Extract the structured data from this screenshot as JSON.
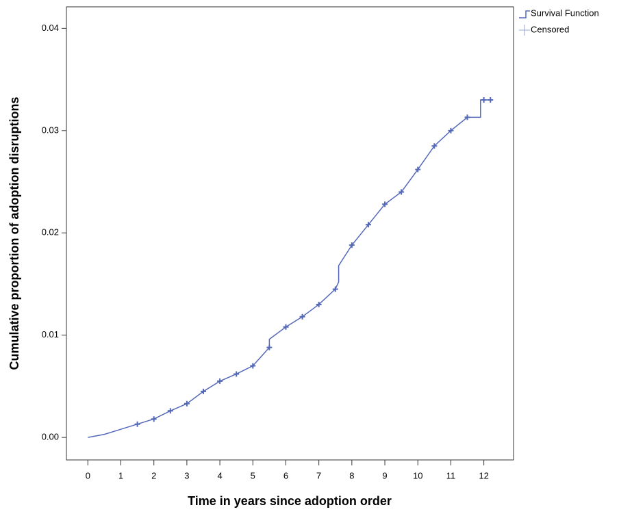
{
  "chart_data": {
    "type": "line",
    "x_label": "Time in years since adoption order",
    "y_label": "Cumulative proportion of adoption disruptions",
    "xlim": [
      -0.65,
      12.9
    ],
    "ylim": [
      -0.0022,
      0.0421
    ],
    "xticks": [
      0,
      1,
      2,
      3,
      4,
      5,
      6,
      7,
      8,
      9,
      10,
      11,
      12
    ],
    "yticks": [
      {
        "value": 0,
        "label": "0.00"
      },
      {
        "value": 0.01,
        "label": "0.01"
      },
      {
        "value": 0.02,
        "label": "0.02"
      },
      {
        "value": 0.03,
        "label": "0.03"
      },
      {
        "value": 0.04,
        "label": "0.04"
      }
    ],
    "series": [
      {
        "name": "Survival Function",
        "color": "#5468b8",
        "x": [
          0,
          0.5,
          1,
          1.5,
          2,
          2.5,
          3,
          3.5,
          4,
          4.5,
          5,
          5.5,
          5.5,
          6,
          6.5,
          7,
          7.5,
          7.6,
          7.6,
          8,
          8.5,
          9,
          9.5,
          10,
          10.5,
          11,
          11.5,
          11.9,
          11.9,
          12.2
        ],
        "values": [
          0,
          0.0003,
          0.0008,
          0.0013,
          0.0018,
          0.0026,
          0.0033,
          0.0045,
          0.0055,
          0.0062,
          0.007,
          0.0088,
          0.0096,
          0.0108,
          0.0118,
          0.013,
          0.0145,
          0.0152,
          0.0168,
          0.0188,
          0.0208,
          0.0228,
          0.024,
          0.0262,
          0.0285,
          0.03,
          0.0313,
          0.0313,
          0.033,
          0.033
        ]
      },
      {
        "name": "Censored",
        "color": "#5468b8",
        "x": [
          1.5,
          2,
          2.5,
          3,
          3.5,
          4,
          4.5,
          5,
          5.5,
          6,
          6.5,
          7,
          7.5,
          8,
          8.5,
          9,
          9.5,
          10,
          10.5,
          11,
          11.5,
          12,
          12.2
        ],
        "values": [
          0.0013,
          0.0018,
          0.0026,
          0.0033,
          0.0045,
          0.0055,
          0.0062,
          0.007,
          0.0088,
          0.0108,
          0.0118,
          0.013,
          0.0145,
          0.0188,
          0.0208,
          0.0228,
          0.024,
          0.0262,
          0.0285,
          0.03,
          0.0313,
          0.033,
          0.033
        ]
      }
    ]
  }
}
